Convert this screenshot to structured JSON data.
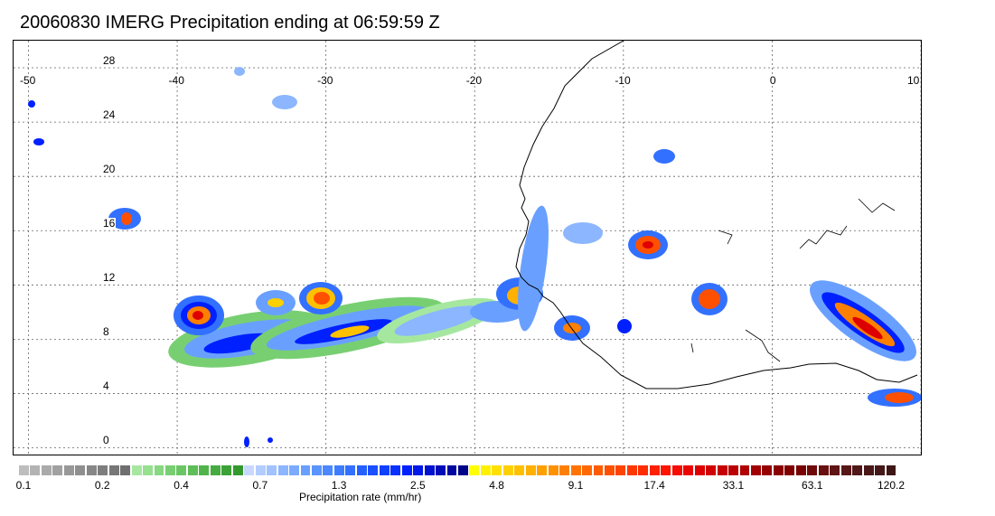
{
  "title": "20060830 IMERG Precipitation ending at 06:59:59 Z",
  "map": {
    "lon_range": [
      -51,
      10
    ],
    "lat_range": [
      -0.5,
      30
    ],
    "lon_ticks": [
      "-50",
      "-40",
      "-30",
      "-20",
      "-10",
      "0",
      "10"
    ],
    "lat_ticks": [
      "0",
      "4",
      "8",
      "12",
      "16",
      "20",
      "24",
      "28"
    ],
    "gridlines": "dotted"
  },
  "colorbar": {
    "tick_labels": [
      "0.1",
      "0.2",
      "0.4",
      "0.7",
      "1.3",
      "2.5",
      "4.8",
      "9.1",
      "17.4",
      "33.1",
      "63.1",
      "120.2"
    ],
    "label": "Precipitation rate (mm/hr)",
    "colors": [
      "#bdbdbd",
      "#b3b3b3",
      "#aaaaaa",
      "#a1a1a1",
      "#989898",
      "#8f8f8f",
      "#878787",
      "#7e7e7e",
      "#777777",
      "#6f6f6f",
      "#a6e7a0",
      "#96e090",
      "#87d881",
      "#78cf72",
      "#6ac664",
      "#5dbd57",
      "#51b44b",
      "#46ab40",
      "#3ca236",
      "#33992d",
      "#c8d8ff",
      "#b4cdff",
      "#a0c2ff",
      "#8cb6ff",
      "#7aabff",
      "#69a0ff",
      "#5994ff",
      "#4b88ff",
      "#3e7cff",
      "#3270ff",
      "#2460ff",
      "#1a50ff",
      "#1040ff",
      "#0830ff",
      "#0020ff",
      "#0018e8",
      "#0012d0",
      "#000cb8",
      "#0008a0",
      "#000488",
      "#ffff00",
      "#fff000",
      "#ffe000",
      "#ffd000",
      "#ffc000",
      "#ffb000",
      "#ffa000",
      "#ff9000",
      "#ff8000",
      "#ff7400",
      "#ff6800",
      "#ff5c00",
      "#ff5000",
      "#ff4400",
      "#ff3800",
      "#ff2c00",
      "#ff2000",
      "#ff1400",
      "#f60c00",
      "#ea0600",
      "#de0000",
      "#d20000",
      "#c60000",
      "#ba0000",
      "#ae0000",
      "#a20000",
      "#960000",
      "#8a0000",
      "#800000",
      "#780000",
      "#700a0a",
      "#681010",
      "#601414",
      "#581616",
      "#501818",
      "#4a1818",
      "#441818",
      "#3e1616"
    ]
  }
}
